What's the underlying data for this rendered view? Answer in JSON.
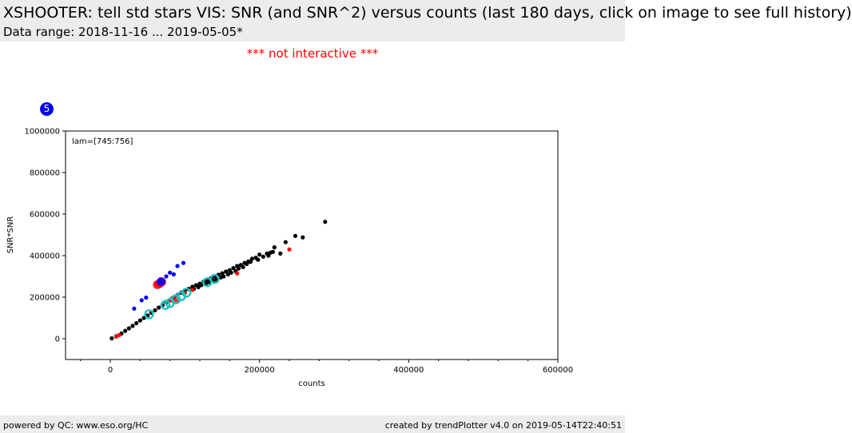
{
  "header": {
    "title": "XSHOOTER: tell std stars VIS: SNR (and SNR^2) versus counts (last 180 days, click on image to see full history)",
    "subtitle": "Data range: 2018-11-16 ... 2019-05-05*"
  },
  "notice": "*** not interactive ***",
  "badge": "5",
  "footer": {
    "left": "powered by QC: www.eso.org/HC",
    "right": "created by trendPlotter v4.0 on 2019-05-14T22:40:51"
  },
  "colors": {
    "black": "#000000",
    "red": "#ff0000",
    "blue": "#0000ff",
    "cyan": "#20c0c0"
  },
  "chart_data": {
    "type": "scatter",
    "title": "",
    "xlabel": "counts",
    "ylabel": "SNR*SNR",
    "annotation": "lam=[745:756]",
    "xlim": [
      -60000,
      600000
    ],
    "ylim": [
      -100000,
      1000000
    ],
    "xticks": [
      0,
      200000,
      400000,
      600000
    ],
    "xtick_labels": [
      "0",
      "200000",
      "400000",
      "600000"
    ],
    "yticks": [
      0,
      200000,
      400000,
      600000,
      800000,
      1000000
    ],
    "ytick_labels": [
      "0",
      "200000",
      "400000",
      "600000",
      "800000",
      "1000000"
    ],
    "grid": false,
    "series": [
      {
        "color": "#000000",
        "marker": "dot",
        "points": [
          [
            2000,
            2000
          ],
          [
            8000,
            12000
          ],
          [
            15000,
            25000
          ],
          [
            20000,
            38000
          ],
          [
            25000,
            50000
          ],
          [
            30000,
            62000
          ],
          [
            35000,
            75000
          ],
          [
            40000,
            88000
          ],
          [
            45000,
            100000
          ],
          [
            50000,
            112000
          ],
          [
            55000,
            125000
          ],
          [
            60000,
            137000
          ],
          [
            65000,
            150000
          ],
          [
            70000,
            162000
          ],
          [
            75000,
            175000
          ],
          [
            80000,
            187000
          ],
          [
            85000,
            198000
          ],
          [
            90000,
            210000
          ],
          [
            95000,
            222000
          ],
          [
            100000,
            232000
          ],
          [
            105000,
            240000
          ],
          [
            110000,
            250000
          ],
          [
            115000,
            258000
          ],
          [
            120000,
            265000
          ],
          [
            125000,
            275000
          ],
          [
            130000,
            283000
          ],
          [
            135000,
            292000
          ],
          [
            140000,
            300000
          ],
          [
            145000,
            308000
          ],
          [
            150000,
            315000
          ],
          [
            155000,
            323000
          ],
          [
            160000,
            330000
          ],
          [
            165000,
            340000
          ],
          [
            170000,
            350000
          ],
          [
            175000,
            355000
          ],
          [
            180000,
            365000
          ],
          [
            185000,
            372000
          ],
          [
            190000,
            385000
          ],
          [
            195000,
            390000
          ],
          [
            200000,
            405000
          ],
          [
            210000,
            410000
          ],
          [
            215000,
            415000
          ],
          [
            220000,
            440000
          ],
          [
            228000,
            410000
          ],
          [
            235000,
            465000
          ],
          [
            248000,
            495000
          ],
          [
            258000,
            488000
          ],
          [
            288000,
            563000
          ],
          [
            112000,
            240000
          ],
          [
            118000,
            248000
          ],
          [
            122000,
            258000
          ],
          [
            128000,
            265000
          ],
          [
            132000,
            272000
          ],
          [
            138000,
            280000
          ],
          [
            142000,
            285000
          ],
          [
            148000,
            295000
          ],
          [
            152000,
            300000
          ],
          [
            158000,
            310000
          ],
          [
            162000,
            318000
          ],
          [
            168000,
            325000
          ],
          [
            172000,
            338000
          ],
          [
            178000,
            345000
          ],
          [
            183000,
            360000
          ],
          [
            188000,
            370000
          ],
          [
            198000,
            380000
          ],
          [
            205000,
            395000
          ],
          [
            212000,
            400000
          ],
          [
            218000,
            418000
          ]
        ]
      },
      {
        "color": "#ff0000",
        "marker": "dot",
        "points": [
          [
            8000,
            10000
          ],
          [
            12000,
            18000
          ],
          [
            80000,
            185000
          ],
          [
            100000,
            220000
          ],
          [
            110000,
            235000
          ],
          [
            170000,
            315000
          ],
          [
            240000,
            430000
          ]
        ]
      },
      {
        "color": "#0000ff",
        "marker": "dot",
        "points": [
          [
            32000,
            145000
          ],
          [
            42000,
            185000
          ],
          [
            48000,
            198000
          ],
          [
            65000,
            265000
          ],
          [
            70000,
            280000
          ],
          [
            75000,
            300000
          ],
          [
            80000,
            318000
          ],
          [
            85000,
            310000
          ],
          [
            90000,
            350000
          ],
          [
            98000,
            365000
          ]
        ]
      },
      {
        "color": "#ff0000",
        "marker": "large-dot",
        "points": [
          [
            63000,
            260000
          ],
          [
            66000,
            265000
          ],
          [
            69000,
            273000
          ],
          [
            86000,
            190000
          ]
        ]
      },
      {
        "color": "#0000ff",
        "marker": "large-dot",
        "points": [
          [
            68000,
            275000
          ]
        ]
      },
      {
        "color": "#20c0c0",
        "marker": "ring",
        "points": [
          [
            52000,
            118000
          ],
          [
            74000,
            163000
          ],
          [
            80000,
            172000
          ],
          [
            88000,
            190000
          ],
          [
            95000,
            205000
          ],
          [
            102000,
            222000
          ],
          [
            130000,
            272000
          ],
          [
            140000,
            288000
          ]
        ]
      }
    ]
  }
}
